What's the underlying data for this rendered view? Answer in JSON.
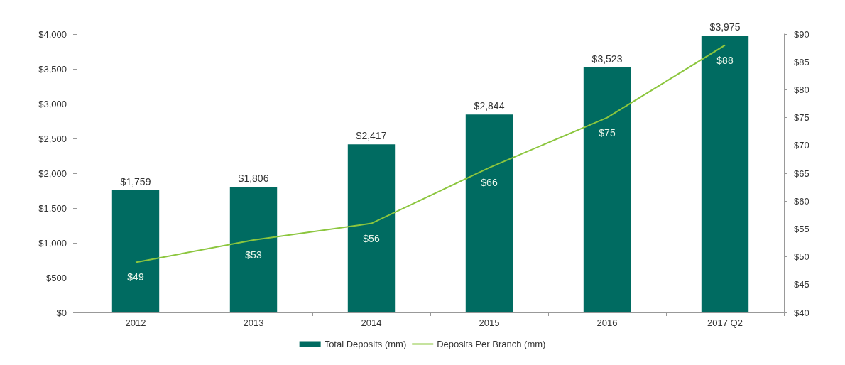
{
  "chart_data": {
    "type": "bar",
    "categories": [
      "2012",
      "2013",
      "2014",
      "2015",
      "2016",
      "2017 Q2"
    ],
    "series": [
      {
        "name": "Total Deposits (mm)",
        "color": "#006b61",
        "values": [
          1759,
          1806,
          2417,
          2844,
          3523,
          3975
        ],
        "value_labels": [
          "$1,759",
          "$1,806",
          "$2,417",
          "$2,844",
          "$3,523",
          "$3,975"
        ]
      },
      {
        "name": "Deposits Per Branch (mm)",
        "type": "line",
        "axis": "y2",
        "color": "#8cc63e",
        "values": [
          49,
          53,
          56,
          66,
          75,
          88
        ],
        "value_labels": [
          "$49",
          "$53",
          "$56",
          "$66",
          "$75",
          "$88"
        ]
      }
    ],
    "ylim": [
      0,
      4000
    ],
    "yticks": [
      {
        "value": 0,
        "label": "$0"
      },
      {
        "value": 500,
        "label": "$500"
      },
      {
        "value": 1000,
        "label": "$1,000"
      },
      {
        "value": 1500,
        "label": "$1,500"
      },
      {
        "value": 2000,
        "label": "$2,000"
      },
      {
        "value": 2500,
        "label": "$2,500"
      },
      {
        "value": 3000,
        "label": "$3,000"
      },
      {
        "value": 3500,
        "label": "$3,500"
      },
      {
        "value": 4000,
        "label": "$4,000"
      }
    ],
    "y2lim": [
      40,
      90
    ],
    "y2ticks": [
      {
        "value": 40,
        "label": "$40"
      },
      {
        "value": 45,
        "label": "$45"
      },
      {
        "value": 50,
        "label": "$50"
      },
      {
        "value": 55,
        "label": "$55"
      },
      {
        "value": 60,
        "label": "$60"
      },
      {
        "value": 65,
        "label": "$65"
      },
      {
        "value": 70,
        "label": "$70"
      },
      {
        "value": 75,
        "label": "$75"
      },
      {
        "value": 80,
        "label": "$80"
      },
      {
        "value": 85,
        "label": "$85"
      },
      {
        "value": 90,
        "label": "$90"
      }
    ],
    "grid": false,
    "legend": "bottom",
    "marker": "none",
    "line_style": "solid"
  }
}
